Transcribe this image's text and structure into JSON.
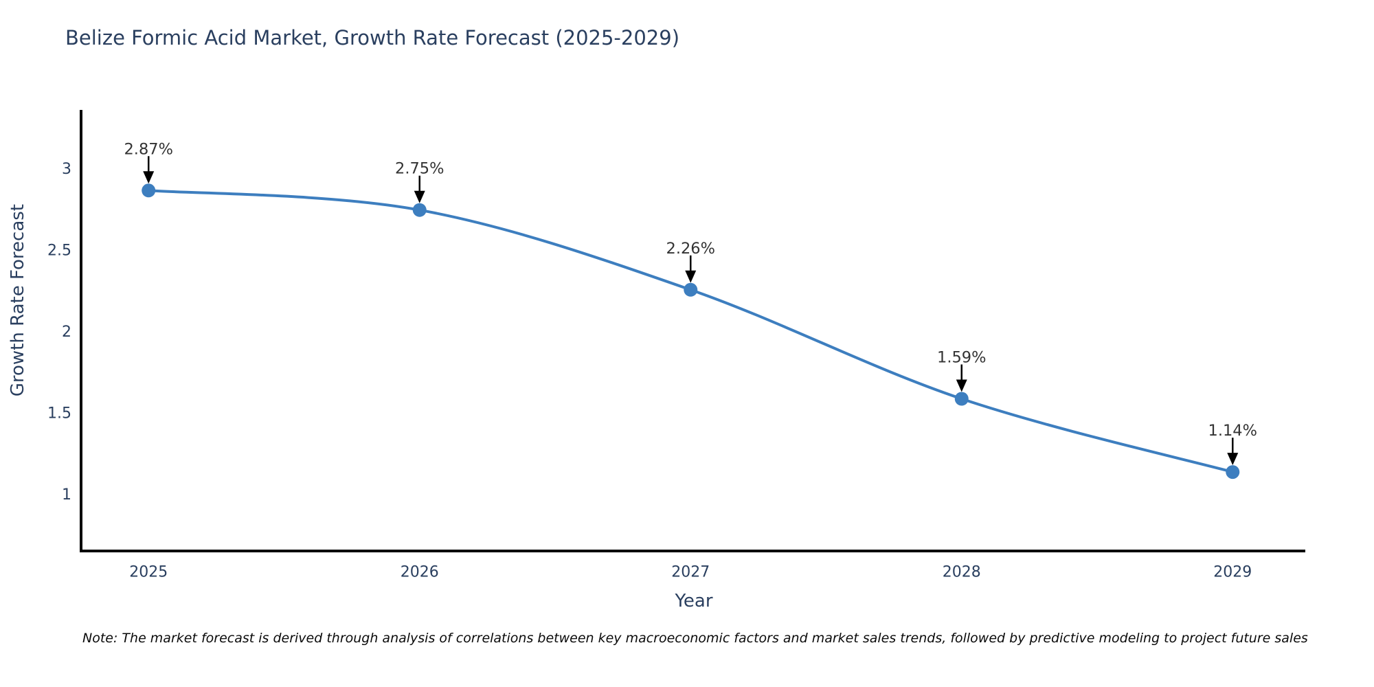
{
  "title": "Belize Formic Acid Market, Growth Rate Forecast (2025-2029)",
  "note": "Note: The market forecast is derived through analysis of correlations between key macroeconomic factors and market sales trends, followed by predictive modeling to project future sales",
  "chart_data": {
    "type": "line",
    "title": "Belize Formic Acid Market, Growth Rate Forecast (2025-2029)",
    "xlabel": "Year",
    "ylabel": "Growth Rate Forecast",
    "x": [
      2025,
      2026,
      2027,
      2028,
      2029
    ],
    "series": [
      {
        "name": "Growth Rate Forecast",
        "values": [
          2.87,
          2.75,
          2.26,
          1.59,
          1.14
        ]
      }
    ],
    "point_labels": [
      "2.87%",
      "2.75%",
      "2.26%",
      "1.59%",
      "1.14%"
    ],
    "yticks": [
      1,
      1.5,
      2,
      2.5,
      3
    ],
    "ylim": [
      0.655,
      3.365
    ],
    "xlim": [
      2024.751,
      2029.268
    ],
    "line_shape": "spline",
    "grid": false,
    "legend": "none",
    "markers": true,
    "annotation_style": "black arrow pointing down to each data point with percent label above",
    "colors": {
      "line": "#3d7ebf",
      "marker": "#3d7ebf",
      "arrow": "#000000",
      "axis_line": "#000000",
      "title_text": "#2a3f5f",
      "tick_text": "#2a3f5f",
      "annotation_text": "#333333",
      "note_text": "#0a0a0a"
    }
  }
}
